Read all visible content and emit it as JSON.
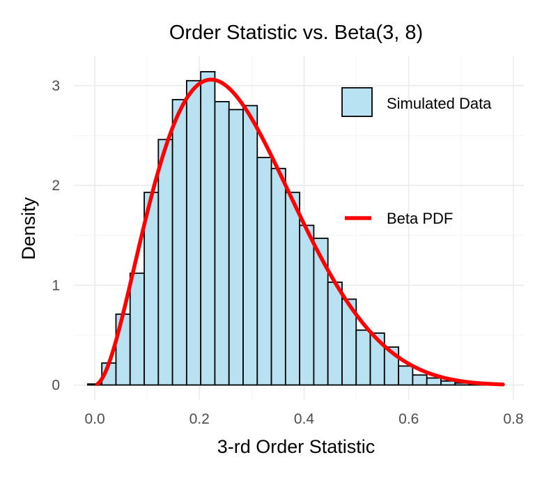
{
  "chart_data": {
    "type": "bar",
    "title": "Order Statistic vs. Beta(3, 8)",
    "xlabel": "3-rd Order Statistic",
    "ylabel": "Density",
    "xlim": [
      -0.04,
      0.82
    ],
    "ylim": [
      -0.15,
      3.3
    ],
    "x_ticks": [
      0.0,
      0.2,
      0.4,
      0.6,
      0.8
    ],
    "x_tick_labels": [
      "0.0",
      "0.2",
      "0.4",
      "0.6",
      "0.8"
    ],
    "y_ticks": [
      0,
      1,
      2,
      3
    ],
    "y_tick_labels": [
      "0",
      "1",
      "2",
      "3"
    ],
    "grid": true,
    "histogram": {
      "name": "Simulated Data",
      "fill": "#b8e2f2",
      "bin_width": 0.027,
      "bin_starts": [
        -0.0135,
        0.0135,
        0.0405,
        0.0675,
        0.0945,
        0.1215,
        0.1485,
        0.1755,
        0.2025,
        0.2295,
        0.2565,
        0.2835,
        0.3105,
        0.3375,
        0.3645,
        0.3915,
        0.4185,
        0.4455,
        0.4725,
        0.4995,
        0.5265,
        0.5535,
        0.5805,
        0.6075,
        0.6345,
        0.6615,
        0.6885,
        0.7155,
        0.7425
      ],
      "density": [
        0.01,
        0.22,
        0.71,
        1.12,
        1.93,
        2.46,
        2.86,
        3.05,
        3.14,
        2.84,
        2.76,
        2.8,
        2.28,
        2.17,
        1.93,
        1.6,
        1.47,
        1.03,
        0.86,
        0.55,
        0.52,
        0.38,
        0.19,
        0.1,
        0.07,
        0.04,
        0.02,
        0.01,
        0.01
      ]
    },
    "curve": {
      "name": "Beta PDF",
      "color": "#ff0000",
      "distribution": "Beta",
      "alpha": 3,
      "beta": 8,
      "x_range": [
        0.005,
        0.78
      ]
    },
    "legend": {
      "placement": "right",
      "entries": [
        "Simulated Data",
        "Beta PDF"
      ]
    }
  }
}
